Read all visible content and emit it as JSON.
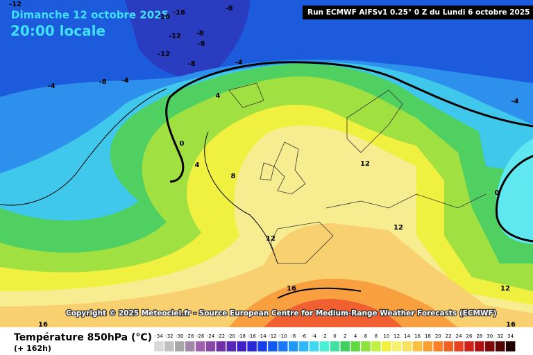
{
  "header": {
    "date": "Dimanche 12 octobre 2025",
    "time": "20:00 locale",
    "run": "Run ECMWF AIFSv1 0.25° 0 Z du Lundi 6 octobre 2025"
  },
  "contour_labels": [
    -12,
    -8,
    -16,
    -16,
    -12,
    -8,
    -8,
    -12,
    -8,
    -4,
    -8,
    -4,
    -4,
    4,
    -4,
    0,
    4,
    8,
    12,
    0,
    12,
    12,
    16,
    12,
    16,
    16
  ],
  "copyright": "Copyright © 2025 Meteociel.fr - Source European Centre for Medium-Range Weather Forecasts (ECMWF)",
  "footer": {
    "variable": "Température 850hPa (°C)",
    "lead": "(+ 162h)"
  },
  "legend": {
    "levels": [
      -34,
      -32,
      -30,
      -28,
      -26,
      -24,
      -22,
      -20,
      -18,
      -16,
      -14,
      -12,
      -10,
      -8,
      -6,
      -4,
      -2,
      0,
      2,
      4,
      6,
      8,
      10,
      12,
      14,
      16,
      18,
      20,
      22,
      24,
      26,
      28,
      30,
      32,
      34
    ],
    "colors": [
      "#d8d8d8",
      "#c0c0c0",
      "#a8a8a8",
      "#a088a8",
      "#a060b0",
      "#8848a8",
      "#7030a8",
      "#5828b8",
      "#4020c8",
      "#2828d8",
      "#1840e8",
      "#1058f0",
      "#1878f8",
      "#2098f8",
      "#30b8f8",
      "#40d8f0",
      "#48f0d8",
      "#40e0a0",
      "#40d060",
      "#60d840",
      "#90e040",
      "#c0f040",
      "#f0f040",
      "#f8f070",
      "#f8e060",
      "#f8c040",
      "#f8a030",
      "#f88028",
      "#f06020",
      "#e84020",
      "#d02018",
      "#b01010",
      "#800808",
      "#500404",
      "#200000"
    ]
  }
}
